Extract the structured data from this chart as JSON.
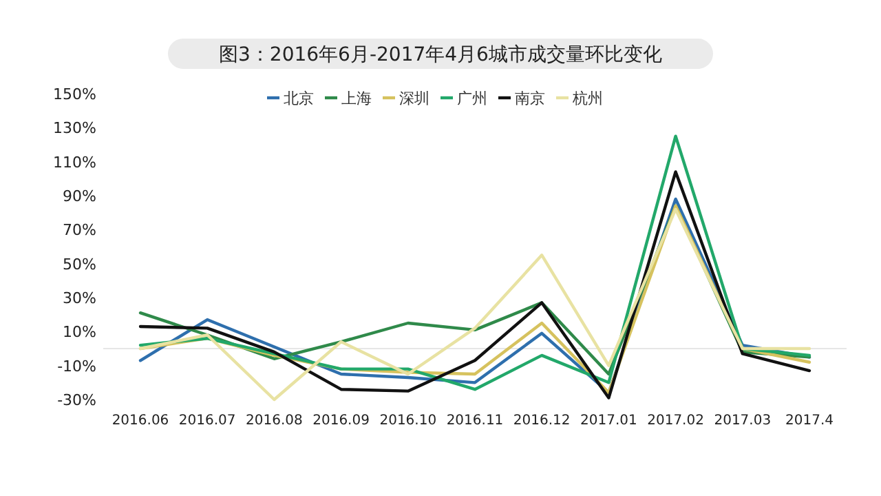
{
  "chart_data": {
    "type": "line",
    "title": "图3：2016年6月-2017年4月6城市成交量环比变化",
    "categories": [
      "2016.06",
      "2016.07",
      "2016.08",
      "2016.09",
      "2016.10",
      "2016.11",
      "2016.12",
      "2017.01",
      "2017.02",
      "2017.03",
      "2017.4"
    ],
    "series": [
      {
        "name": "北京",
        "color": "#2e6fad",
        "values": [
          -7,
          17,
          1,
          -15,
          -17,
          -20,
          9,
          -26,
          88,
          2,
          -5
        ]
      },
      {
        "name": "上海",
        "color": "#2f8a4a",
        "values": [
          21,
          8,
          -6,
          4,
          15,
          11,
          27,
          -15,
          84,
          -2,
          -5
        ]
      },
      {
        "name": "深圳",
        "color": "#d6c25e",
        "values": [
          0,
          6,
          -4,
          -12,
          -14,
          -15,
          15,
          -26,
          84,
          0,
          -8
        ]
      },
      {
        "name": "广州",
        "color": "#22a86a",
        "values": [
          2,
          6,
          -3,
          -12,
          -12,
          -24,
          -4,
          -20,
          125,
          0,
          -4
        ]
      },
      {
        "name": "南京",
        "color": "#111111",
        "values": [
          13,
          12,
          -2,
          -24,
          -25,
          -7,
          27,
          -29,
          104,
          -3,
          -13
        ]
      },
      {
        "name": "杭州",
        "color": "#e8e2a2",
        "values": [
          0,
          8,
          -30,
          4,
          -15,
          12,
          55,
          -10,
          82,
          0,
          0
        ]
      }
    ],
    "ylim": [
      -30,
      150
    ],
    "yticks": [
      {
        "value": -30,
        "label": "-30%"
      },
      {
        "value": -10,
        "label": "-10%"
      },
      {
        "value": 10,
        "label": "10%"
      },
      {
        "value": 30,
        "label": "30%"
      },
      {
        "value": 50,
        "label": "50%"
      },
      {
        "value": 70,
        "label": "70%"
      },
      {
        "value": 90,
        "label": "90%"
      },
      {
        "value": 110,
        "label": "110%"
      },
      {
        "value": 130,
        "label": "130%"
      },
      {
        "value": 150,
        "label": "150%"
      }
    ],
    "grid": false,
    "legend": "top",
    "marker": "none",
    "line_style": "solid"
  }
}
